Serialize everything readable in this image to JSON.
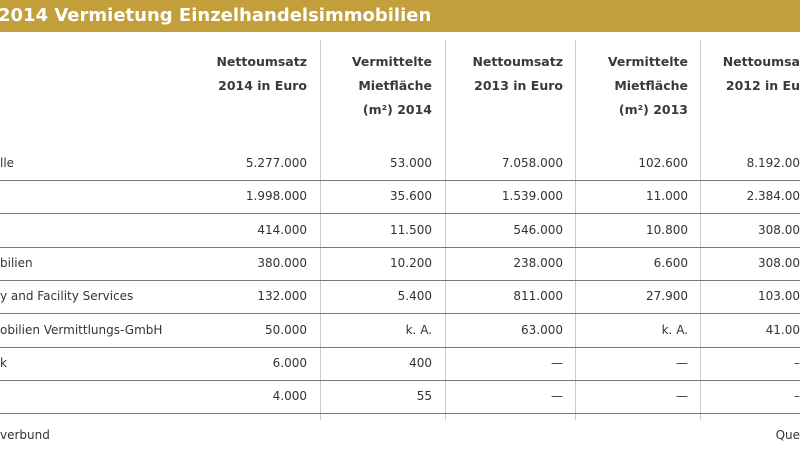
{
  "header": {
    "title": "2014 Vermietung Einzelhandelsimmobilien"
  },
  "table": {
    "columns": [
      [
        "Nettoumsatz",
        "2014 in Euro"
      ],
      [
        "Vermittelte",
        "Mietfläche",
        "(m²) 2014"
      ],
      [
        "Nettoumsatz",
        "2013 in Euro"
      ],
      [
        "Vermittelte",
        "Mietfläche",
        "(m²) 2013"
      ],
      [
        "Nettoumsa",
        "2012 in Eu"
      ]
    ],
    "rows": [
      {
        "label": "lle",
        "cells": [
          "5.277.000",
          "53.000",
          "7.058.000",
          "102.600",
          "8.192.00"
        ]
      },
      {
        "cells": [
          "1.998.000",
          "35.600",
          "1.539.000",
          "11.000",
          "2.384.00"
        ]
      },
      {
        "cells": [
          "414.000",
          "11.500",
          "546.000",
          "10.800",
          "308.00"
        ]
      },
      {
        "label": "bilien",
        "cells": [
          "380.000",
          "10.200",
          "238.000",
          "6.600",
          "308.00"
        ]
      },
      {
        "label": "y and Facility Services",
        "cells": [
          "132.000",
          "5.400",
          "811.000",
          "27.900",
          "103.00"
        ]
      },
      {
        "label": "obilien Vermittlungs-GmbH",
        "cells": [
          "50.000",
          "k. A.",
          "63.000",
          "k. A.",
          "41.00"
        ]
      },
      {
        "label": "k",
        "cells": [
          "6.000",
          "400",
          "—",
          "—",
          "–"
        ]
      },
      {
        "cells": [
          "4.000",
          "55",
          "—",
          "—",
          "–"
        ]
      }
    ]
  },
  "footer": {
    "left": "verbund",
    "right": "Que"
  }
}
